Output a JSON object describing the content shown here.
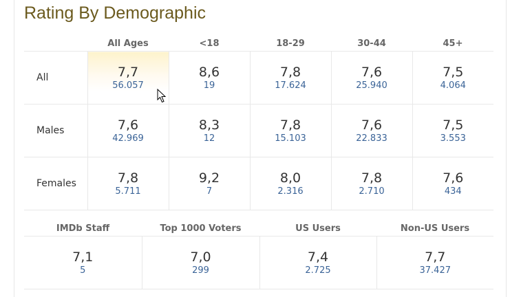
{
  "title": "Rating By Demographic",
  "age_headers": [
    "All Ages",
    "<18",
    "18-29",
    "30-44",
    "45+"
  ],
  "rows": [
    {
      "label": "All",
      "cells": [
        {
          "rating": "7,7",
          "votes": "56.057"
        },
        {
          "rating": "8,6",
          "votes": "19"
        },
        {
          "rating": "7,8",
          "votes": "17.624"
        },
        {
          "rating": "7,6",
          "votes": "25.940"
        },
        {
          "rating": "7,5",
          "votes": "4.064"
        }
      ]
    },
    {
      "label": "Males",
      "cells": [
        {
          "rating": "7,6",
          "votes": "42.969"
        },
        {
          "rating": "8,3",
          "votes": "12"
        },
        {
          "rating": "7,8",
          "votes": "15.103"
        },
        {
          "rating": "7,6",
          "votes": "22.833"
        },
        {
          "rating": "7,5",
          "votes": "3.553"
        }
      ]
    },
    {
      "label": "Females",
      "cells": [
        {
          "rating": "7,8",
          "votes": "5.711"
        },
        {
          "rating": "9,2",
          "votes": "7"
        },
        {
          "rating": "8,0",
          "votes": "2.316"
        },
        {
          "rating": "7,8",
          "votes": "2.710"
        },
        {
          "rating": "7,6",
          "votes": "434"
        }
      ]
    }
  ],
  "other_groups": [
    {
      "label": "IMDb Staff",
      "rating": "7,1",
      "votes": "5"
    },
    {
      "label": "Top 1000 Voters",
      "rating": "7,0",
      "votes": "299"
    },
    {
      "label": "US Users",
      "rating": "7,4",
      "votes": "2.725"
    },
    {
      "label": "Non-US Users",
      "rating": "7,7",
      "votes": "37.427"
    }
  ],
  "colors": {
    "title": "#6b5a1e",
    "votes_link": "#3a6397",
    "highlight": "#fdf3cc"
  },
  "cursor_icon": "mouse-pointer-icon"
}
